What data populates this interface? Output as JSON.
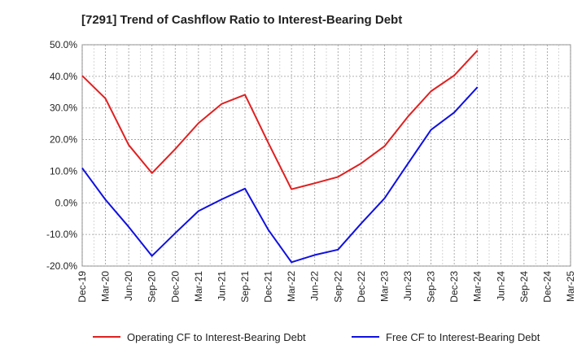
{
  "chart_data": {
    "type": "line",
    "title": "[7291]  Trend of Cashflow Ratio to Interest-Bearing Debt",
    "xlabel": "",
    "ylabel": "",
    "ylim": [
      -20,
      50
    ],
    "y_ticks": [
      50,
      40,
      30,
      20,
      10,
      0,
      -10,
      -20
    ],
    "y_tick_labels": [
      "50.0%",
      "40.0%",
      "30.0%",
      "20.0%",
      "10.0%",
      "0.0%",
      "-10.0%",
      "-20.0%"
    ],
    "categories": [
      "Dec-19",
      "Mar-20",
      "Jun-20",
      "Sep-20",
      "Dec-20",
      "Mar-21",
      "Jun-21",
      "Sep-21",
      "Dec-21",
      "Mar-22",
      "Jun-22",
      "Sep-22",
      "Dec-22",
      "Mar-23",
      "Jun-23",
      "Sep-23",
      "Dec-23",
      "Mar-24",
      "Jun-24",
      "Sep-24",
      "Dec-24",
      "Mar-25"
    ],
    "grid": true,
    "legend_position": "bottom",
    "series": [
      {
        "name": "Operating CF to Interest-Bearing Debt",
        "color": "#e02020",
        "values": [
          40.2,
          33.0,
          18.3,
          9.4,
          17.0,
          25.2,
          31.3,
          34.2,
          19.0,
          4.3,
          6.2,
          8.2,
          12.5,
          17.9,
          27.2,
          35.3,
          40.3,
          48.2,
          null,
          null,
          null,
          null
        ]
      },
      {
        "name": "Free CF to Interest-Bearing Debt",
        "color": "#1010e0",
        "values": [
          11.0,
          1.0,
          -7.6,
          -16.8,
          -9.6,
          -2.6,
          1.1,
          4.5,
          -8.5,
          -18.8,
          -16.5,
          -14.8,
          -6.5,
          1.4,
          12.3,
          23.1,
          28.6,
          36.6,
          null,
          null,
          null,
          null
        ]
      }
    ]
  }
}
